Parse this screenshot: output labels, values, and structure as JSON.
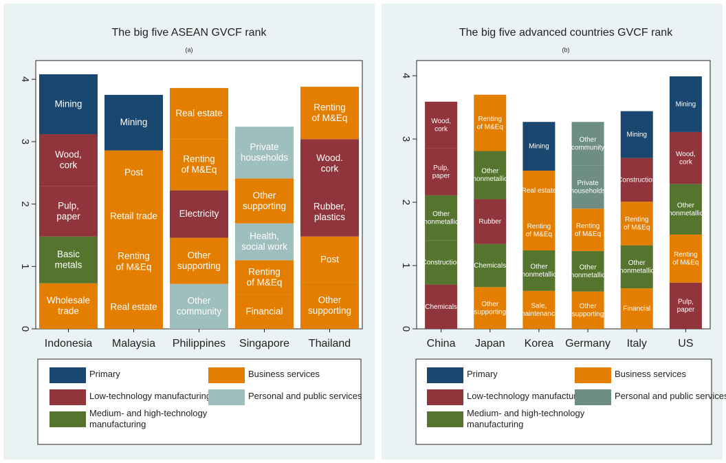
{
  "chart_data": [
    {
      "type": "bar",
      "title": "The big five ASEAN GVCF rank",
      "subtitle": "(a)",
      "categories": [
        "Indonesia",
        "Malaysia",
        "Philippines",
        "Singapore",
        "Thailand"
      ],
      "ylim": [
        0,
        4.3
      ],
      "yticks": [
        0,
        1,
        2,
        3,
        4
      ],
      "legend": [
        {
          "name": [
            "Primary"
          ],
          "color": "#1a476f"
        },
        {
          "name": [
            "Business services"
          ],
          "color": "#e37e00"
        },
        {
          "name": [
            "Low-technology manufacturing"
          ],
          "color": "#90353b"
        },
        {
          "name": [
            "Personal and public services"
          ],
          "color": "#9fbfbf"
        },
        {
          "name": [
            "Medium- and high-technology",
            "manufacturing"
          ],
          "color": "#55752f"
        }
      ],
      "bars": [
        [
          {
            "label": [
              "Wholesale",
              "trade"
            ],
            "value": 0.73,
            "color": "#e37e00"
          },
          {
            "label": [
              "Basic",
              "metals"
            ],
            "value": 0.75,
            "color": "#55752f"
          },
          {
            "label": [
              "Pulp,",
              "paper"
            ],
            "value": 0.81,
            "color": "#90353b"
          },
          {
            "label": [
              "Wood,",
              "cork"
            ],
            "value": 0.83,
            "color": "#90353b"
          },
          {
            "label": [
              "Mining"
            ],
            "value": 0.96,
            "color": "#1a476f"
          }
        ],
        [
          {
            "label": [
              "Real estate"
            ],
            "value": 0.7,
            "color": "#e37e00"
          },
          {
            "label": [
              "Renting",
              "of M&Eq"
            ],
            "value": 0.75,
            "color": "#e37e00"
          },
          {
            "label": [
              "Retail trade"
            ],
            "value": 0.7,
            "color": "#e37e00"
          },
          {
            "label": [
              "Post"
            ],
            "value": 0.71,
            "color": "#e37e00"
          },
          {
            "label": [
              "Mining"
            ],
            "value": 0.89,
            "color": "#1a476f"
          }
        ],
        [
          {
            "label": [
              "Other",
              "community"
            ],
            "value": 0.72,
            "color": "#9fbfbf"
          },
          {
            "label": [
              "Other",
              "supporting"
            ],
            "value": 0.74,
            "color": "#e37e00"
          },
          {
            "label": [
              "Electricity"
            ],
            "value": 0.76,
            "color": "#90353b"
          },
          {
            "label": [
              "Renting",
              "of M&Eq"
            ],
            "value": 0.82,
            "color": "#e37e00"
          },
          {
            "label": [
              "Real estate"
            ],
            "value": 0.82,
            "color": "#e37e00"
          }
        ],
        [
          {
            "label": [
              "Financial"
            ],
            "value": 0.55,
            "color": "#e37e00"
          },
          {
            "label": [
              "Renting",
              "of M&Eq"
            ],
            "value": 0.55,
            "color": "#e37e00"
          },
          {
            "label": [
              "Health,",
              "social work"
            ],
            "value": 0.59,
            "color": "#9fbfbf"
          },
          {
            "label": [
              "Other",
              "supporting"
            ],
            "value": 0.72,
            "color": "#e37e00"
          },
          {
            "label": [
              "Private",
              "households"
            ],
            "value": 0.83,
            "color": "#9fbfbf"
          }
        ],
        [
          {
            "label": [
              "Other",
              "supporting"
            ],
            "value": 0.74,
            "color": "#e37e00"
          },
          {
            "label": [
              "Post"
            ],
            "value": 0.74,
            "color": "#e37e00"
          },
          {
            "label": [
              "Rubber,",
              "plastics"
            ],
            "value": 0.78,
            "color": "#90353b"
          },
          {
            "label": [
              "Wood.",
              "cork"
            ],
            "value": 0.78,
            "color": "#90353b"
          },
          {
            "label": [
              "Renting",
              "of M&Eq"
            ],
            "value": 0.84,
            "color": "#e37e00"
          }
        ]
      ]
    },
    {
      "type": "bar",
      "title": "The big five advanced countries GVCF rank",
      "subtitle": "(b)",
      "categories": [
        "China",
        "Japan",
        "Korea",
        "Germany",
        "Italy",
        "US"
      ],
      "ylim": [
        0,
        4.24
      ],
      "yticks": [
        0,
        1,
        2,
        3,
        4
      ],
      "legend": [
        {
          "name": [
            "Primary"
          ],
          "color": "#1a476f"
        },
        {
          "name": [
            "Business services"
          ],
          "color": "#e37e00"
        },
        {
          "name": [
            "Low-technology manufacturing"
          ],
          "color": "#90353b"
        },
        {
          "name": [
            "Personal and public services"
          ],
          "color": "#6e8e84"
        },
        {
          "name": [
            "Medium- and high-technology",
            "manufacturing"
          ],
          "color": "#55752f"
        }
      ],
      "bars": [
        [
          {
            "label": [
              "Chemicals"
            ],
            "value": 0.7,
            "color": "#90353b"
          },
          {
            "label": [
              "Construction"
            ],
            "value": 0.7,
            "color": "#55752f"
          },
          {
            "label": [
              "Other",
              "nonmetallic"
            ],
            "value": 0.71,
            "color": "#55752f"
          },
          {
            "label": [
              "Pulp,",
              "paper"
            ],
            "value": 0.74,
            "color": "#90353b"
          },
          {
            "label": [
              "Wood,",
              "cork"
            ],
            "value": 0.74,
            "color": "#90353b"
          }
        ],
        [
          {
            "label": [
              "Other",
              "supporting"
            ],
            "value": 0.66,
            "color": "#e37e00"
          },
          {
            "label": [
              "Chemicals"
            ],
            "value": 0.68,
            "color": "#55752f"
          },
          {
            "label": [
              "Rubber"
            ],
            "value": 0.71,
            "color": "#90353b"
          },
          {
            "label": [
              "Other",
              "nonmetallic"
            ],
            "value": 0.76,
            "color": "#55752f"
          },
          {
            "label": [
              "Renting",
              "of M&Eq"
            ],
            "value": 0.89,
            "color": "#e37e00"
          }
        ],
        [
          {
            "label": [
              "Sale,",
              "maintenance"
            ],
            "value": 0.6,
            "color": "#e37e00"
          },
          {
            "label": [
              "Other",
              "nonmetallic"
            ],
            "value": 0.64,
            "color": "#55752f"
          },
          {
            "label": [
              "Renting",
              "of M&Eq"
            ],
            "value": 0.63,
            "color": "#e37e00"
          },
          {
            "label": [
              "Real estate"
            ],
            "value": 0.63,
            "color": "#e37e00"
          },
          {
            "label": [
              "Mining"
            ],
            "value": 0.77,
            "color": "#1a476f"
          }
        ],
        [
          {
            "label": [
              "Other",
              "supporting"
            ],
            "value": 0.59,
            "color": "#e37e00"
          },
          {
            "label": [
              "Other",
              "nonmetallic"
            ],
            "value": 0.64,
            "color": "#55752f"
          },
          {
            "label": [
              "Renting",
              "of M&Eq"
            ],
            "value": 0.67,
            "color": "#e37e00"
          },
          {
            "label": [
              "Private",
              "households"
            ],
            "value": 0.68,
            "color": "#6e8e84"
          },
          {
            "label": [
              "Other",
              "community"
            ],
            "value": 0.69,
            "color": "#6e8e84"
          }
        ],
        [
          {
            "label": [
              "Financial"
            ],
            "value": 0.64,
            "color": "#e37e00"
          },
          {
            "label": [
              "Other",
              "nonmetallic"
            ],
            "value": 0.68,
            "color": "#55752f"
          },
          {
            "label": [
              "Renting",
              "of M&Eq"
            ],
            "value": 0.69,
            "color": "#e37e00"
          },
          {
            "label": [
              "Construction"
            ],
            "value": 0.69,
            "color": "#90353b"
          },
          {
            "label": [
              "Mining"
            ],
            "value": 0.74,
            "color": "#1a476f"
          }
        ],
        [
          {
            "label": [
              "Pulp,",
              "paper"
            ],
            "value": 0.73,
            "color": "#90353b"
          },
          {
            "label": [
              "Renting",
              "of M&Eq"
            ],
            "value": 0.76,
            "color": "#e37e00"
          },
          {
            "label": [
              "Other",
              "nonmetallic"
            ],
            "value": 0.8,
            "color": "#55752f"
          },
          {
            "label": [
              "Wood,",
              "cork"
            ],
            "value": 0.82,
            "color": "#90353b"
          },
          {
            "label": [
              "Mining"
            ],
            "value": 0.88,
            "color": "#1a476f"
          }
        ]
      ]
    }
  ]
}
